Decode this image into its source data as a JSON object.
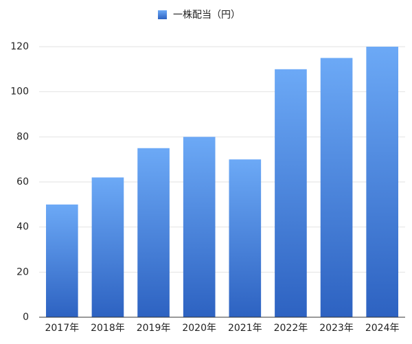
{
  "chart_data": {
    "type": "bar",
    "legend": "一株配当（円）",
    "categories": [
      "2017年",
      "2018年",
      "2019年",
      "2020年",
      "2021年",
      "2022年",
      "2023年",
      "2024年"
    ],
    "values": [
      50,
      62,
      75,
      80,
      70,
      110,
      115,
      120
    ],
    "color": [
      "#6ca9f6",
      "#2d62c1"
    ],
    "ylim": [
      0,
      120
    ],
    "yticks": [
      0,
      20,
      40,
      60,
      80,
      100,
      120
    ],
    "grid": true,
    "legend_position": "top"
  }
}
